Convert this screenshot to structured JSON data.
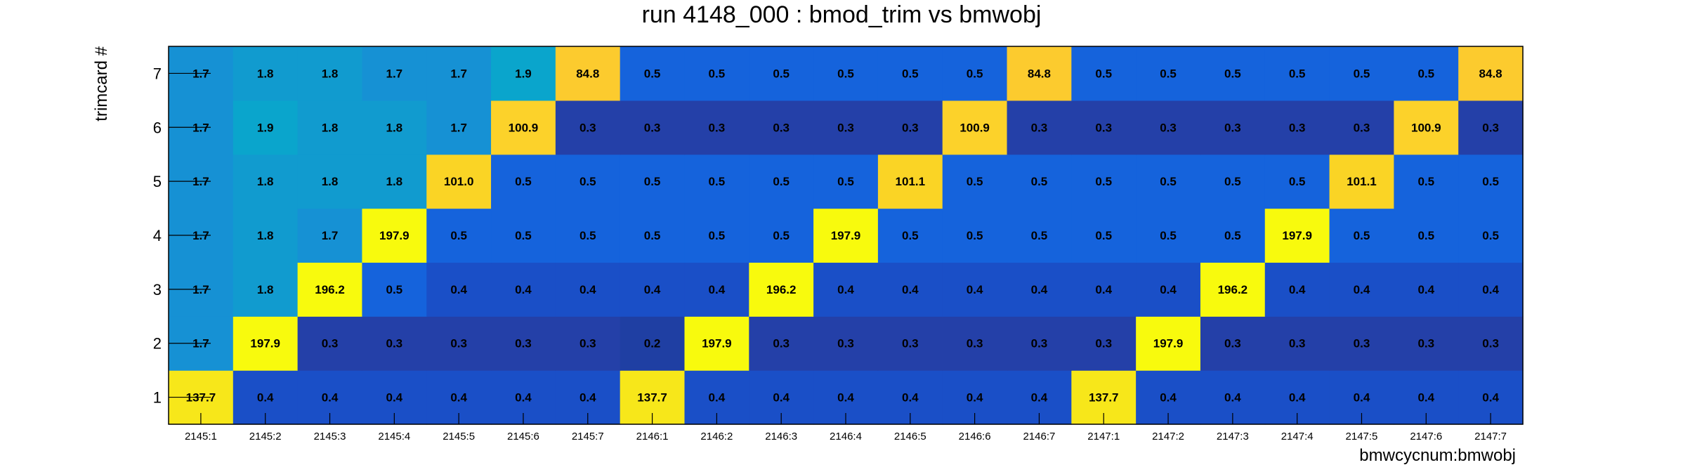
{
  "chart_data": {
    "type": "heatmap",
    "title": "run 4148_000 : bmod_trim vs bmwobj",
    "xlabel": "bmwcycnum:bmwobj",
    "ylabel": "trimcard #",
    "categories": [
      "2145:1",
      "2145:2",
      "2145:3",
      "2145:4",
      "2145:5",
      "2145:6",
      "2145:7",
      "2146:1",
      "2146:2",
      "2146:3",
      "2146:4",
      "2146:5",
      "2146:6",
      "2146:7",
      "2147:1",
      "2147:2",
      "2147:3",
      "2147:4",
      "2147:5",
      "2147:6",
      "2147:7"
    ],
    "y_categories": [
      "1",
      "2",
      "3",
      "4",
      "5",
      "6",
      "7"
    ],
    "values": [
      [
        "137.7",
        "0.4",
        "0.4",
        "0.4",
        "0.4",
        "0.4",
        "0.4",
        "137.7",
        "0.4",
        "0.4",
        "0.4",
        "0.4",
        "0.4",
        "0.4",
        "137.7",
        "0.4",
        "0.4",
        "0.4",
        "0.4",
        "0.4",
        "0.4"
      ],
      [
        "1.7",
        "197.9",
        "0.3",
        "0.3",
        "0.3",
        "0.3",
        "0.3",
        "0.2",
        "197.9",
        "0.3",
        "0.3",
        "0.3",
        "0.3",
        "0.3",
        "0.3",
        "197.9",
        "0.3",
        "0.3",
        "0.3",
        "0.3",
        "0.3"
      ],
      [
        "1.7",
        "1.8",
        "196.2",
        "0.5",
        "0.4",
        "0.4",
        "0.4",
        "0.4",
        "0.4",
        "196.2",
        "0.4",
        "0.4",
        "0.4",
        "0.4",
        "0.4",
        "0.4",
        "196.2",
        "0.4",
        "0.4",
        "0.4",
        "0.4"
      ],
      [
        "1.7",
        "1.8",
        "1.7",
        "197.9",
        "0.5",
        "0.5",
        "0.5",
        "0.5",
        "0.5",
        "0.5",
        "197.9",
        "0.5",
        "0.5",
        "0.5",
        "0.5",
        "0.5",
        "0.5",
        "197.9",
        "0.5",
        "0.5",
        "0.5"
      ],
      [
        "1.7",
        "1.8",
        "1.8",
        "1.8",
        "101.0",
        "0.5",
        "0.5",
        "0.5",
        "0.5",
        "0.5",
        "0.5",
        "101.1",
        "0.5",
        "0.5",
        "0.5",
        "0.5",
        "0.5",
        "0.5",
        "101.1",
        "0.5",
        "0.5"
      ],
      [
        "1.7",
        "1.9",
        "1.8",
        "1.8",
        "1.7",
        "100.9",
        "0.3",
        "0.3",
        "0.3",
        "0.3",
        "0.3",
        "0.3",
        "100.9",
        "0.3",
        "0.3",
        "0.3",
        "0.3",
        "0.3",
        "0.3",
        "100.9",
        "0.3"
      ],
      [
        "1.7",
        "1.8",
        "1.8",
        "1.7",
        "1.7",
        "1.9",
        "84.8",
        "0.5",
        "0.5",
        "0.5",
        "0.5",
        "0.5",
        "0.5",
        "84.8",
        "0.5",
        "0.5",
        "0.5",
        "0.5",
        "0.5",
        "0.5",
        "84.8"
      ]
    ],
    "palette": {
      "v0.2": "#1f3fa3",
      "v0.3": "#2440a8",
      "v0.4": "#1a4fc7",
      "v0.5": "#1563dc",
      "v1.7": "#1691d4",
      "v1.8": "#119bcf",
      "v1.9": "#0aa5cc",
      "v84.8": "#fccb2e",
      "v100.9": "#fcd22a",
      "v101.0": "#fad425",
      "v101.1": "#fad425",
      "v137.7": "#f7e71a",
      "v196.2": "#f8fa0d",
      "v197.9": "#f8fa0d"
    }
  }
}
